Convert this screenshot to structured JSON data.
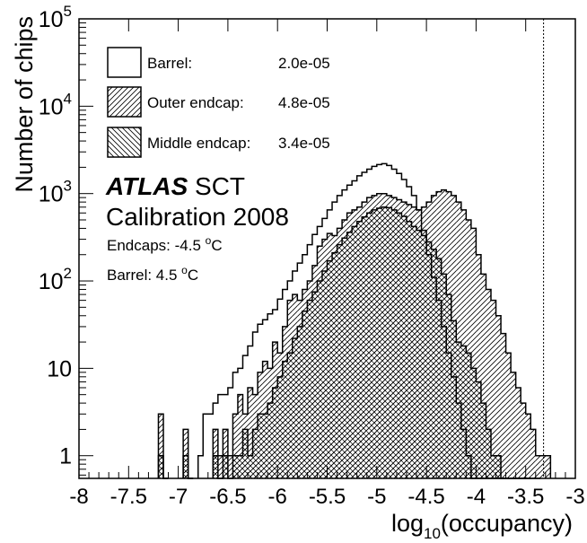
{
  "chart_data": {
    "type": "histogram",
    "title": "",
    "xlabel_main": "log",
    "xlabel_sub": "10",
    "xlabel_rest": "(occupancy)",
    "ylabel": "Number of chips",
    "y_scale": "log",
    "ylim": [
      0.55,
      100000
    ],
    "xlim": [
      -8,
      -3
    ],
    "x_ticks": [
      -8,
      -7.5,
      -7,
      -6.5,
      -6,
      -5.5,
      -5,
      -4.5,
      -4,
      -3.5,
      -3
    ],
    "x_tick_labels": [
      "-8",
      "-7.5",
      "-7",
      "-6.5",
      "-6",
      "-5.5",
      "-5",
      "-4.5",
      "-4",
      "-3.5",
      "-3"
    ],
    "y_ticks": [
      1,
      10,
      100,
      1000,
      10000,
      100000
    ],
    "y_tick_labels": [
      {
        "base": "1",
        "exp": ""
      },
      {
        "base": "10",
        "exp": ""
      },
      {
        "base": "10",
        "exp": "2"
      },
      {
        "base": "10",
        "exp": "3"
      },
      {
        "base": "10",
        "exp": "4"
      },
      {
        "base": "10",
        "exp": "5"
      }
    ],
    "threshold_line_x": -3.32,
    "bin_width": 0.05,
    "series": [
      {
        "name": "Barrel:",
        "legend_value": "2.0e-05",
        "fill": "none",
        "x": [
          -6.8,
          -6.75,
          -6.7,
          -6.65,
          -6.6,
          -6.55,
          -6.5,
          -6.45,
          -6.4,
          -6.35,
          -6.3,
          -6.25,
          -6.2,
          -6.15,
          -6.1,
          -6.05,
          -6.0,
          -5.95,
          -5.9,
          -5.85,
          -5.8,
          -5.75,
          -5.7,
          -5.65,
          -5.6,
          -5.55,
          -5.5,
          -5.45,
          -5.4,
          -5.35,
          -5.3,
          -5.25,
          -5.2,
          -5.15,
          -5.1,
          -5.05,
          -5.0,
          -4.95,
          -4.9,
          -4.85,
          -4.8,
          -4.75,
          -4.7,
          -4.65,
          -4.6,
          -4.55,
          -4.5,
          -4.45,
          -4.4,
          -4.35,
          -4.3,
          -4.25,
          -4.2,
          -4.15,
          -4.1,
          -4.05,
          -4.0,
          -3.95,
          -3.9,
          -3.85,
          -3.8,
          -3.75,
          -3.7,
          -3.65,
          -3.6,
          -3.55,
          -3.5
        ],
        "values": [
          1,
          3,
          3,
          4,
          5,
          5,
          6,
          9,
          10,
          14,
          18,
          26,
          32,
          36,
          42,
          47,
          62,
          80,
          100,
          130,
          160,
          200,
          260,
          340,
          420,
          520,
          650,
          800,
          950,
          1100,
          1250,
          1400,
          1600,
          1750,
          1900,
          2050,
          2150,
          2200,
          2100,
          1900,
          1700,
          1450,
          1200,
          950,
          650,
          380,
          200,
          110,
          60,
          30,
          15,
          8,
          4,
          2,
          1,
          0,
          0,
          0,
          0,
          0,
          0,
          0,
          0,
          0,
          0,
          0,
          0
        ]
      },
      {
        "name": "Outer endcap:",
        "legend_value": "4.8e-05",
        "fill": "hatch-forward",
        "x": [
          -7.2,
          -7.15,
          -6.95,
          -6.9,
          -6.65,
          -6.6,
          -6.55,
          -6.5,
          -6.45,
          -6.4,
          -6.35,
          -6.3,
          -6.25,
          -6.2,
          -6.15,
          -6.1,
          -6.05,
          -6.0,
          -5.95,
          -5.9,
          -5.85,
          -5.8,
          -5.75,
          -5.7,
          -5.65,
          -5.6,
          -5.55,
          -5.5,
          -5.45,
          -5.4,
          -5.35,
          -5.3,
          -5.25,
          -5.2,
          -5.15,
          -5.1,
          -5.05,
          -5.0,
          -4.95,
          -4.9,
          -4.85,
          -4.8,
          -4.75,
          -4.7,
          -4.65,
          -4.6,
          -4.55,
          -4.5,
          -4.45,
          -4.4,
          -4.35,
          -4.3,
          -4.25,
          -4.2,
          -4.15,
          -4.1,
          -4.05,
          -4.0,
          -3.95,
          -3.9,
          -3.85,
          -3.8,
          -3.75,
          -3.7,
          -3.65,
          -3.6,
          -3.55,
          -3.5,
          -3.45,
          -3.4,
          -3.35,
          -3.3
        ],
        "values": [
          3,
          0,
          2,
          0,
          2,
          1,
          2,
          1,
          3,
          5,
          3,
          6,
          5,
          9,
          12,
          10,
          20,
          15,
          30,
          60,
          70,
          60,
          80,
          100,
          150,
          250,
          300,
          350,
          330,
          400,
          500,
          600,
          650,
          700,
          800,
          900,
          950,
          1000,
          1000,
          950,
          900,
          850,
          800,
          750,
          700,
          650,
          700,
          800,
          950,
          1050,
          1100,
          1050,
          950,
          800,
          650,
          500,
          400,
          200,
          120,
          80,
          60,
          40,
          25,
          15,
          9,
          6,
          4,
          3,
          2,
          1,
          1,
          1
        ]
      },
      {
        "name": "Middle endcap:",
        "legend_value": "3.4e-05",
        "fill": "hatch-cross",
        "x": [
          -7.2,
          -7.15,
          -6.95,
          -6.9,
          -6.65,
          -6.6,
          -6.55,
          -6.5,
          -6.45,
          -6.4,
          -6.35,
          -6.3,
          -6.25,
          -6.2,
          -6.15,
          -6.1,
          -6.05,
          -6.0,
          -5.95,
          -5.9,
          -5.85,
          -5.8,
          -5.75,
          -5.7,
          -5.65,
          -5.6,
          -5.55,
          -5.5,
          -5.45,
          -5.4,
          -5.35,
          -5.3,
          -5.25,
          -5.2,
          -5.15,
          -5.1,
          -5.05,
          -5.0,
          -4.95,
          -4.9,
          -4.85,
          -4.8,
          -4.75,
          -4.7,
          -4.65,
          -4.6,
          -4.55,
          -4.5,
          -4.45,
          -4.4,
          -4.35,
          -4.3,
          -4.25,
          -4.2,
          -4.15,
          -4.1,
          -4.05,
          -4.0,
          -3.95,
          -3.9,
          -3.85,
          -3.8,
          -3.75,
          -3.7,
          -3.65,
          -3.6,
          -3.55,
          -3.5,
          -3.45,
          -3.4
        ],
        "values": [
          1,
          0,
          1,
          0,
          1,
          0,
          1,
          0,
          1,
          1,
          2,
          1,
          2,
          3,
          3,
          4,
          6,
          8,
          12,
          15,
          22,
          30,
          45,
          60,
          75,
          100,
          130,
          170,
          210,
          260,
          310,
          360,
          420,
          480,
          540,
          600,
          650,
          680,
          700,
          690,
          650,
          600,
          550,
          480,
          420,
          380,
          330,
          280,
          230,
          180,
          120,
          70,
          35,
          20,
          18,
          15,
          10,
          7,
          4,
          2,
          1,
          1,
          0,
          0,
          0,
          0,
          0,
          0,
          0,
          0
        ]
      }
    ],
    "annotations": {
      "experiment": "ATLAS",
      "detector": "SCT",
      "run": "Calibration 2008",
      "endcaps_label": "Endcaps: -4.5 ",
      "endcaps_unit_o": "o",
      "endcaps_unit_c": "C",
      "barrel_label": "Barrel: 4.5 ",
      "barrel_unit_o": "o",
      "barrel_unit_c": "C"
    },
    "legend_position": "top-left",
    "grid": false
  }
}
